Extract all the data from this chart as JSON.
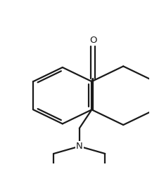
{
  "bg_color": "#ffffff",
  "line_color": "#1a1a1a",
  "line_width": 1.6,
  "figsize": [
    2.16,
    2.58
  ],
  "dpi": 100,
  "xlim": [
    0,
    1
  ],
  "ylim": [
    0,
    1
  ]
}
